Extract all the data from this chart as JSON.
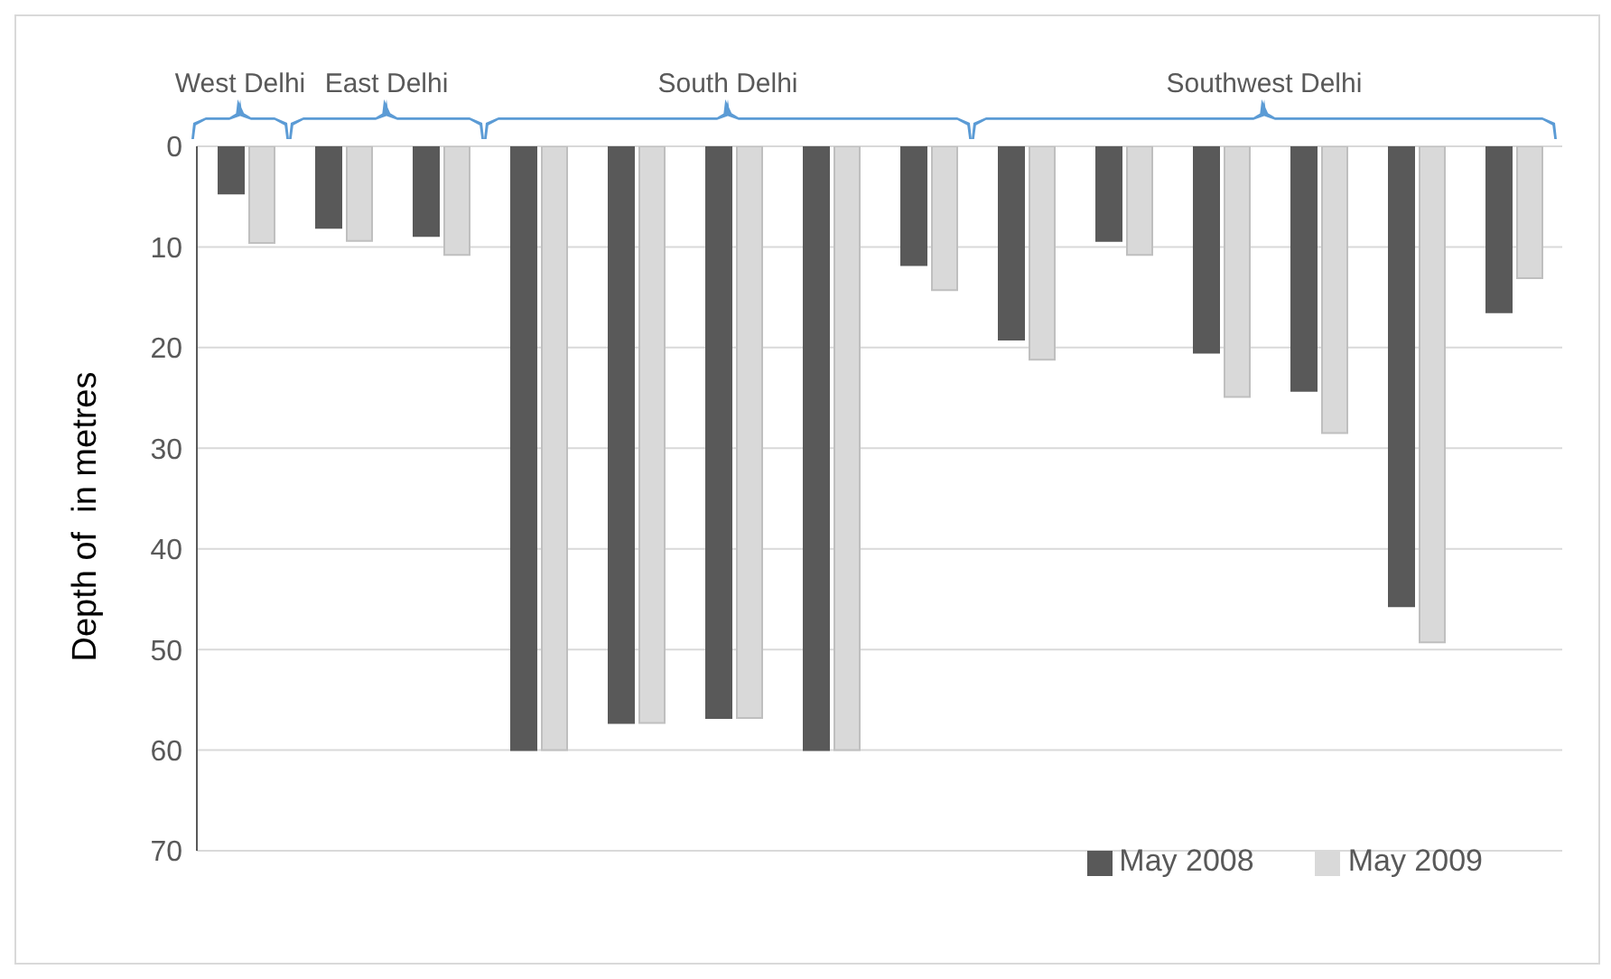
{
  "chart_data": {
    "type": "bar",
    "ylabel": "Depth of  in metres",
    "categories": [
      null,
      null,
      null,
      null,
      null,
      null,
      null,
      null,
      null,
      null,
      null,
      null,
      null,
      null
    ],
    "series": [
      {
        "name": "May 2008",
        "color": "#595959",
        "values": [
          4.7,
          8.1,
          8.9,
          60,
          57.3,
          56.8,
          60,
          11.8,
          19.2,
          9.4,
          20.5,
          24.3,
          45.7,
          16.5
        ]
      },
      {
        "name": "May 2009",
        "color": "#d9d9d9",
        "values": [
          9.6,
          9.4,
          10.8,
          60,
          57.3,
          56.8,
          60,
          14.3,
          21.2,
          10.8,
          24.9,
          28.5,
          49.3,
          13.1
        ]
      }
    ],
    "ylim": [
      70,
      0
    ],
    "yticks": [
      0,
      10,
      20,
      30,
      40,
      50,
      60,
      70
    ],
    "grid": "y",
    "legend": "bottom right",
    "annotations": [
      "West Delhi",
      "East Delhi",
      "South Delhi",
      "Southwest Delhi"
    ]
  }
}
